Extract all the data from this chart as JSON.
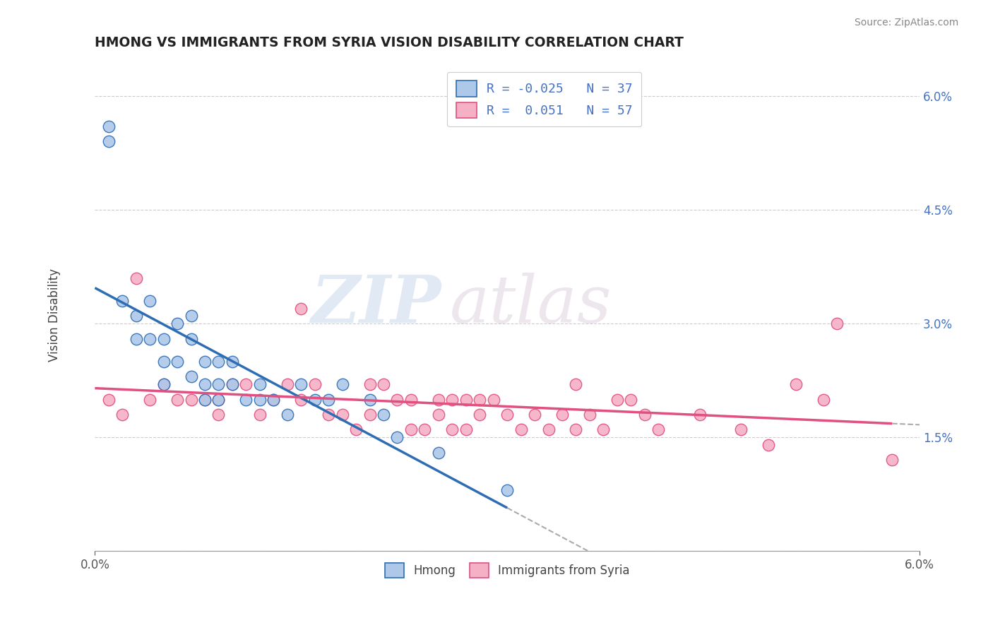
{
  "title": "HMONG VS IMMIGRANTS FROM SYRIA VISION DISABILITY CORRELATION CHART",
  "source": "Source: ZipAtlas.com",
  "ylabel": "Vision Disability",
  "xmin": 0.0,
  "xmax": 0.06,
  "ymin": 0.0,
  "ymax": 0.065,
  "yticks": [
    0.0,
    0.015,
    0.03,
    0.045,
    0.06
  ],
  "ytick_labels": [
    "",
    "1.5%",
    "3.0%",
    "4.5%",
    "6.0%"
  ],
  "hmong_R": -0.025,
  "hmong_N": 37,
  "syria_R": 0.051,
  "syria_N": 57,
  "hmong_color": "#adc8e8",
  "syria_color": "#f5b0c5",
  "hmong_line_color": "#2e6db4",
  "syria_line_color": "#e05080",
  "watermark_zip": "ZIP",
  "watermark_atlas": "atlas",
  "hmong_x": [
    0.001,
    0.001,
    0.002,
    0.003,
    0.003,
    0.004,
    0.004,
    0.005,
    0.005,
    0.005,
    0.006,
    0.006,
    0.007,
    0.007,
    0.007,
    0.008,
    0.008,
    0.008,
    0.009,
    0.009,
    0.009,
    0.01,
    0.01,
    0.011,
    0.012,
    0.012,
    0.013,
    0.014,
    0.015,
    0.016,
    0.017,
    0.018,
    0.02,
    0.021,
    0.022,
    0.025,
    0.03
  ],
  "hmong_y": [
    0.056,
    0.054,
    0.033,
    0.031,
    0.028,
    0.033,
    0.028,
    0.028,
    0.025,
    0.022,
    0.03,
    0.025,
    0.031,
    0.028,
    0.023,
    0.025,
    0.022,
    0.02,
    0.025,
    0.022,
    0.02,
    0.025,
    0.022,
    0.02,
    0.022,
    0.02,
    0.02,
    0.018,
    0.022,
    0.02,
    0.02,
    0.022,
    0.02,
    0.018,
    0.015,
    0.013,
    0.008
  ],
  "syria_x": [
    0.001,
    0.002,
    0.003,
    0.004,
    0.005,
    0.006,
    0.007,
    0.008,
    0.009,
    0.009,
    0.01,
    0.011,
    0.012,
    0.013,
    0.014,
    0.015,
    0.015,
    0.016,
    0.017,
    0.018,
    0.019,
    0.02,
    0.02,
    0.021,
    0.022,
    0.023,
    0.023,
    0.024,
    0.025,
    0.025,
    0.026,
    0.026,
    0.027,
    0.027,
    0.028,
    0.028,
    0.029,
    0.03,
    0.031,
    0.032,
    0.033,
    0.034,
    0.035,
    0.035,
    0.036,
    0.037,
    0.038,
    0.039,
    0.04,
    0.041,
    0.044,
    0.047,
    0.049,
    0.051,
    0.053,
    0.054,
    0.058
  ],
  "syria_y": [
    0.02,
    0.018,
    0.036,
    0.02,
    0.022,
    0.02,
    0.02,
    0.02,
    0.02,
    0.018,
    0.022,
    0.022,
    0.018,
    0.02,
    0.022,
    0.02,
    0.032,
    0.022,
    0.018,
    0.018,
    0.016,
    0.018,
    0.022,
    0.022,
    0.02,
    0.02,
    0.016,
    0.016,
    0.02,
    0.018,
    0.02,
    0.016,
    0.02,
    0.016,
    0.02,
    0.018,
    0.02,
    0.018,
    0.016,
    0.018,
    0.016,
    0.018,
    0.022,
    0.016,
    0.018,
    0.016,
    0.02,
    0.02,
    0.018,
    0.016,
    0.018,
    0.016,
    0.014,
    0.022,
    0.02,
    0.03,
    0.012
  ]
}
